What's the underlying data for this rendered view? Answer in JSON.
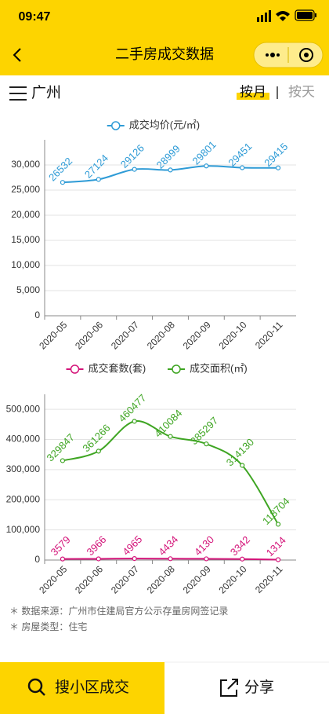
{
  "status_bar": {
    "time": "09:47"
  },
  "header": {
    "title": "二手房成交数据"
  },
  "city": "广州",
  "toggle": {
    "active": "按月",
    "inactive": "按天"
  },
  "chart_data": [
    {
      "type": "line",
      "categories": [
        "2020-05",
        "2020-06",
        "2020-07",
        "2020-08",
        "2020-09",
        "2020-10",
        "2020-11"
      ],
      "series": [
        {
          "name": "成交均价(元/㎡)",
          "color": "#2e9bd6",
          "values": [
            26532,
            27124,
            29126,
            28999,
            29801,
            29451,
            29415
          ]
        }
      ],
      "ylim": [
        0,
        35000
      ],
      "yticks": [
        0,
        {
          "value": 5000,
          "label": "5,000"
        },
        {
          "value": 10000,
          "label": "10,000"
        },
        {
          "value": 15000,
          "label": "15,000"
        },
        {
          "value": 20000,
          "label": "20,000"
        },
        {
          "value": 25000,
          "label": "25,000"
        },
        {
          "value": 30000,
          "label": "30,000"
        }
      ],
      "grid": true,
      "legend": "top"
    },
    {
      "type": "line",
      "categories": [
        "2020-05",
        "2020-06",
        "2020-07",
        "2020-08",
        "2020-09",
        "2020-10",
        "2020-11"
      ],
      "series": [
        {
          "name": "成交套数(套)",
          "color": "#d4157a",
          "values": [
            3579,
            3966,
            4965,
            4434,
            4130,
            3342,
            1314
          ]
        },
        {
          "name": "成交面积(㎡)",
          "color": "#3ea522",
          "values": [
            329847,
            361266,
            460477,
            410084,
            385297,
            314130,
            118704
          ]
        }
      ],
      "ylim": [
        0,
        550000
      ],
      "yticks": [
        0,
        {
          "value": 100000,
          "label": "100,000"
        },
        {
          "value": 200000,
          "label": "200,000"
        },
        {
          "value": 300000,
          "label": "300,000"
        },
        {
          "value": 400000,
          "label": "400,000"
        },
        {
          "value": 500000,
          "label": "500,000"
        }
      ],
      "grid": true,
      "legend": "top"
    }
  ],
  "notes": [
    "＊ 数据来源：广州市住建局官方公示存量房网签记录",
    "＊ 房屋类型：住宅"
  ],
  "footer": {
    "search": "搜小区成交",
    "share": "分享"
  }
}
